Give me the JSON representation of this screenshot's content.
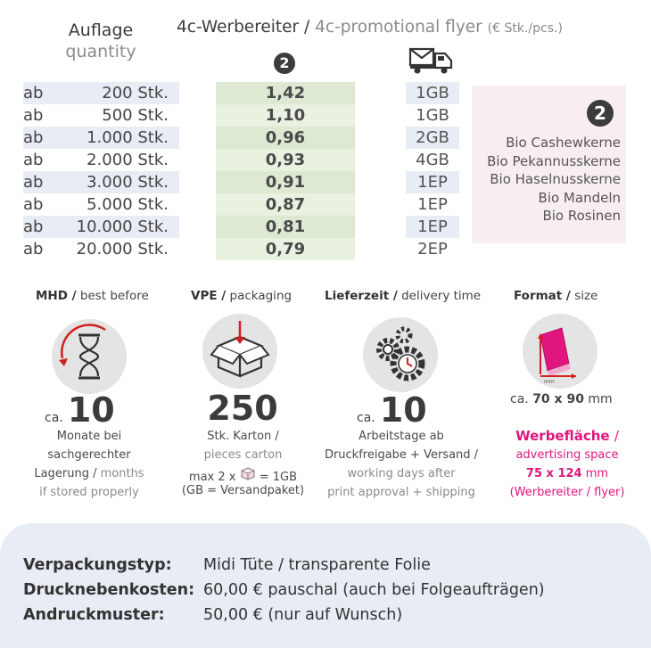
{
  "header": {
    "quantity_de": "Auflage",
    "quantity_en": "quantity",
    "title_de": "4c-Werbereiter /",
    "title_en": "4c-promotional flyer",
    "unit": "(€ Stk./pcs.)",
    "price_badge": "2"
  },
  "table": {
    "rows": [
      {
        "prefix": "ab",
        "qty": "200 Stk.",
        "price": "1,42",
        "ship": "1GB"
      },
      {
        "prefix": "ab",
        "qty": "500 Stk.",
        "price": "1,10",
        "ship": "1GB"
      },
      {
        "prefix": "ab",
        "qty": "1.000 Stk.",
        "price": "0,96",
        "ship": "2GB"
      },
      {
        "prefix": "ab",
        "qty": "2.000 Stk.",
        "price": "0,93",
        "ship": "4GB"
      },
      {
        "prefix": "ab",
        "qty": "3.000 Stk.",
        "price": "0,91",
        "ship": "1EP"
      },
      {
        "prefix": "ab",
        "qty": "5.000 Stk.",
        "price": "0,87",
        "ship": "1EP"
      },
      {
        "prefix": "ab",
        "qty": "10.000 Stk.",
        "price": "0,81",
        "ship": "1EP"
      },
      {
        "prefix": "ab",
        "qty": "20.000 Stk.",
        "price": "0,79",
        "ship": "2EP"
      }
    ]
  },
  "variants": {
    "badge": "2",
    "items": [
      "Bio Cashewkerne",
      "Bio Pekannusskerne",
      "Bio Haselnusskerne",
      "Bio Mandeln",
      "Bio Rosinen"
    ]
  },
  "info": {
    "mhd": {
      "title_de": "MHD /",
      "title_en": "best before",
      "ca": "ca.",
      "value": "10",
      "l1": "Monate bei",
      "l2": "sachgerechter",
      "l3_de": "Lagerung /",
      "l3_en": "months",
      "l4": "if stored properly"
    },
    "vpe": {
      "title_de": "VPE /",
      "title_en": "packaging",
      "value": "250",
      "l1": "Stk. Karton /",
      "l2": "pieces carton",
      "l3a": "max 2 x",
      "l3b": "= 1GB",
      "l4": "(GB = Versandpaket)"
    },
    "delivery": {
      "title_de": "Lieferzeit /",
      "title_en": "delivery time",
      "ca": "ca.",
      "value": "10",
      "l1": "Arbeitstage ab",
      "l2": "Druckfreigabe + Versand /",
      "l3": "working days after",
      "l4": "print approval + shipping"
    },
    "format": {
      "title_de": "Format /",
      "title_en": "size",
      "icon_label": "mm",
      "ca": "ca.",
      "value": "70 x 90",
      "unit": "mm",
      "area_de": "Werbefläche",
      "area_sep": "/",
      "area_en": "advertising space",
      "area_value": "75 x 124",
      "area_unit": "mm",
      "area_note": "(Werbereiter / flyer)"
    }
  },
  "footer": [
    {
      "label": "Verpackungstyp:",
      "value": "Midi Tüte / transparente Folie"
    },
    {
      "label": "Drucknebenkosten:",
      "value": "60,00 € pauschal (auch bei Folgeaufträgen)"
    },
    {
      "label": "Andruckmuster:",
      "value": "50,00 € (nur auf Wunsch)"
    }
  ],
  "colors": {
    "accent": "#e0157e",
    "price_dark": "#dde9d2",
    "price_light": "#e9f1e1",
    "qty_shade": "#e8ecf4",
    "variant_bg": "#f8eef2"
  }
}
